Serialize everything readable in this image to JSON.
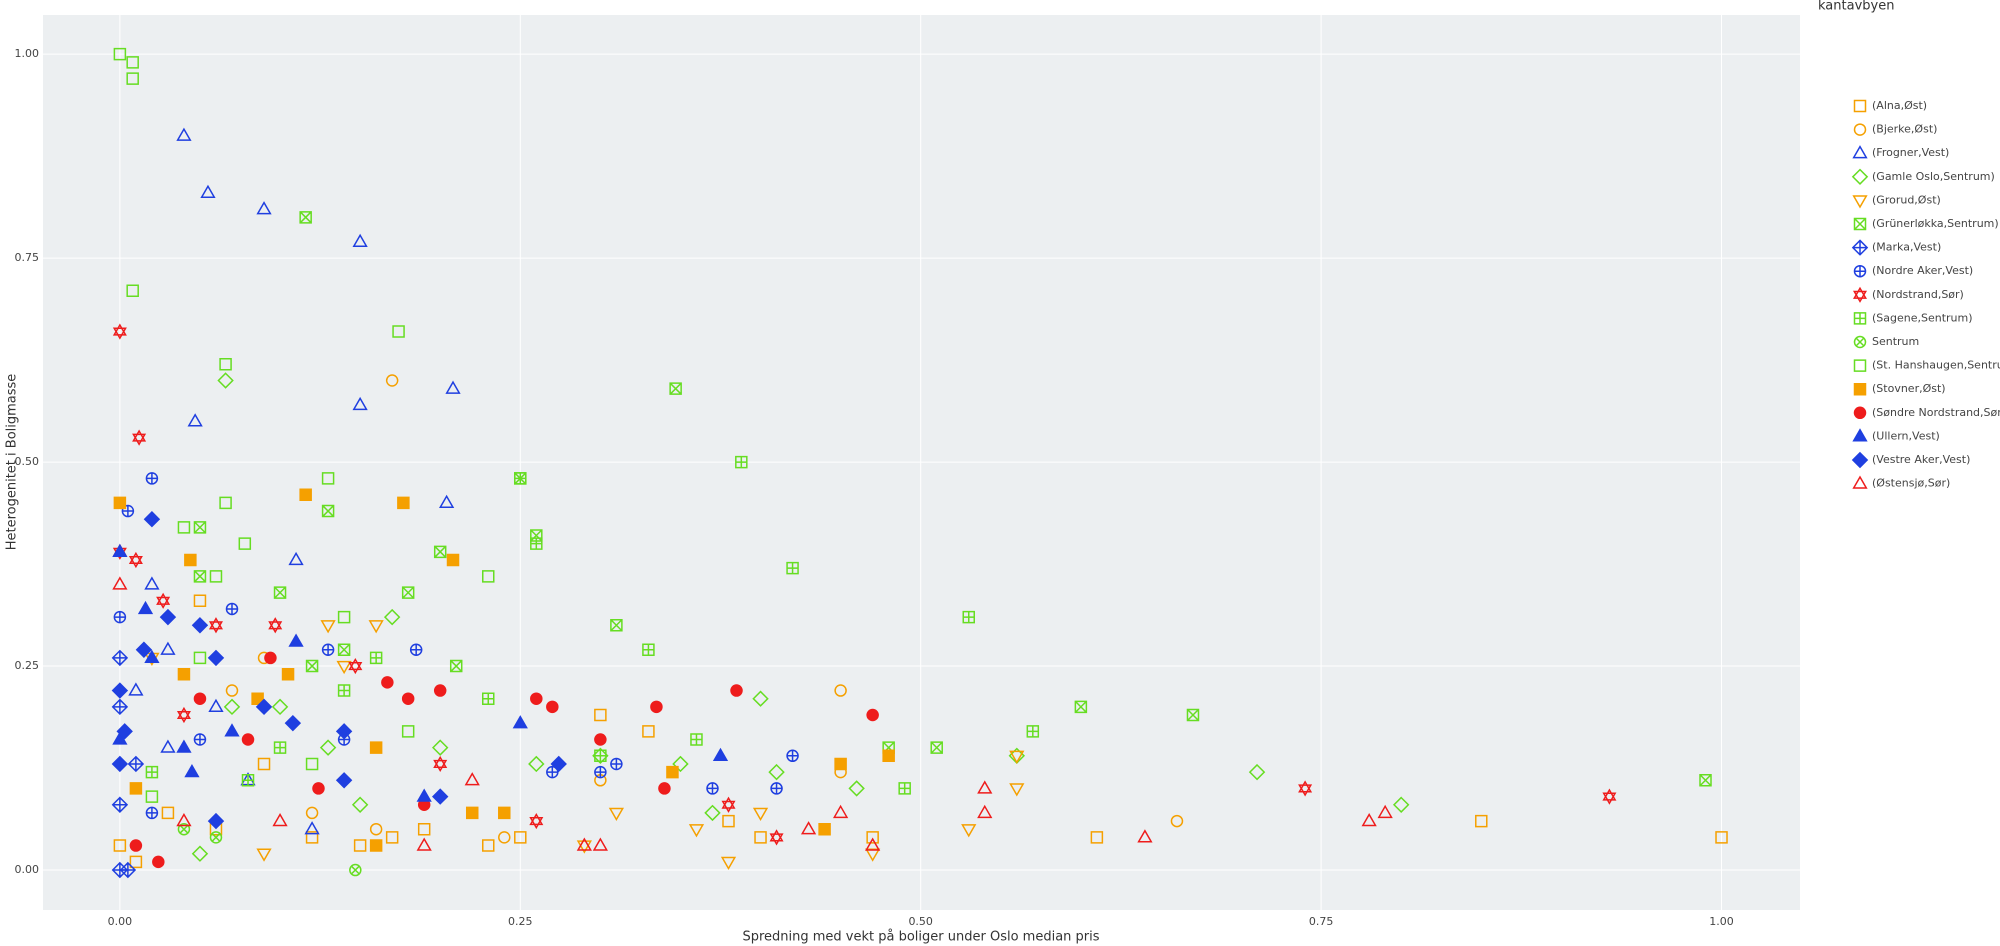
{
  "chart_data": {
    "type": "scatter",
    "xlabel": "Spredning med vekt på boliger under Oslo median pris",
    "ylabel": "Heterogenitet i Boligmasse",
    "legend_title": "kantavbyen",
    "legend": "right",
    "grid": true,
    "xlim": [
      -0.048,
      1.049
    ],
    "ylim": [
      -0.049,
      1.048
    ],
    "xticks": [
      {
        "value": 0,
        "label": "0.00"
      },
      {
        "value": 0.25,
        "label": "0.25"
      },
      {
        "value": 0.5,
        "label": "0.50"
      },
      {
        "value": 0.75,
        "label": "0.75"
      },
      {
        "value": 1,
        "label": "1.00"
      }
    ],
    "yticks": [
      {
        "value": 0,
        "label": "0.00"
      },
      {
        "value": 0.25,
        "label": "0.25"
      },
      {
        "value": 0.5,
        "label": "0.50"
      },
      {
        "value": 0.75,
        "label": "0.75"
      },
      {
        "value": 1,
        "label": "1.00"
      }
    ],
    "series": [
      {
        "name": "(Alna,Øst)",
        "color": "#f5a000",
        "symbol": "square-open",
        "x": [
          0.0,
          0.01,
          0.03,
          0.05,
          0.06,
          0.09,
          0.12,
          0.15,
          0.17,
          0.19,
          0.23,
          0.25,
          0.3,
          0.33,
          0.38,
          0.4,
          0.47,
          0.61,
          0.85,
          1.0
        ],
        "y": [
          0.03,
          0.01,
          0.07,
          0.33,
          0.05,
          0.13,
          0.04,
          0.03,
          0.04,
          0.05,
          0.03,
          0.04,
          0.19,
          0.17,
          0.06,
          0.04,
          0.04,
          0.04,
          0.06,
          0.04
        ]
      },
      {
        "name": "(Bjerke,Øst)",
        "color": "#f5a000",
        "symbol": "circle-open",
        "x": [
          0.09,
          0.17,
          0.12,
          0.16,
          0.24,
          0.3,
          0.45,
          0.45,
          0.66,
          0.07
        ],
        "y": [
          0.26,
          0.6,
          0.07,
          0.05,
          0.04,
          0.11,
          0.22,
          0.12,
          0.06,
          0.22
        ]
      },
      {
        "name": "(Frogner,Vest)",
        "color": "#1f3fe0",
        "symbol": "triangle-up-open",
        "x": [
          0.04,
          0.055,
          0.09,
          0.15,
          0.047,
          0.15,
          0.208,
          0.204,
          0.11,
          0.02,
          0.03,
          0.06,
          0.08,
          0.12,
          0.03,
          0.01
        ],
        "y": [
          0.9,
          0.83,
          0.81,
          0.77,
          0.55,
          0.57,
          0.59,
          0.45,
          0.38,
          0.35,
          0.27,
          0.2,
          0.11,
          0.05,
          0.15,
          0.22
        ]
      },
      {
        "name": "(Gamle Oslo,Sentrum)",
        "color": "#66dd22",
        "symbol": "diamond-open",
        "x": [
          0.066,
          0.17,
          0.1,
          0.07,
          0.13,
          0.2,
          0.26,
          0.3,
          0.35,
          0.4,
          0.41,
          0.37,
          0.46,
          0.56,
          0.71,
          0.8,
          0.05,
          0.15
        ],
        "y": [
          0.6,
          0.31,
          0.2,
          0.2,
          0.15,
          0.15,
          0.13,
          0.14,
          0.13,
          0.21,
          0.12,
          0.07,
          0.1,
          0.14,
          0.12,
          0.08,
          0.02,
          0.08
        ]
      },
      {
        "name": "(Grorud,Øst)",
        "color": "#f5a000",
        "symbol": "triangle-down-open",
        "x": [
          0.13,
          0.16,
          0.09,
          0.29,
          0.31,
          0.36,
          0.38,
          0.4,
          0.47,
          0.53,
          0.56,
          0.56,
          0.14,
          0.02
        ],
        "y": [
          0.3,
          0.3,
          0.02,
          0.03,
          0.07,
          0.05,
          0.01,
          0.07,
          0.02,
          0.05,
          0.1,
          0.14,
          0.25,
          0.26
        ]
      },
      {
        "name": "(Grünerløkka,Sentrum)",
        "color": "#66dd22",
        "symbol": "square-x-open",
        "x": [
          0.116,
          0.347,
          0.25,
          0.13,
          0.2,
          0.26,
          0.31,
          0.18,
          0.1,
          0.05,
          0.05,
          0.21,
          0.6,
          0.67,
          0.51,
          0.99,
          0.48,
          0.12,
          0.14
        ],
        "y": [
          0.8,
          0.59,
          0.48,
          0.44,
          0.39,
          0.41,
          0.3,
          0.34,
          0.34,
          0.36,
          0.42,
          0.25,
          0.2,
          0.19,
          0.15,
          0.11,
          0.15,
          0.25,
          0.27
        ]
      },
      {
        "name": "(Marka,Vest)",
        "color": "#1f3fe0",
        "symbol": "diamond-cross-open",
        "x": [
          0.0,
          0.005,
          0.0,
          0.0,
          0.01,
          0.0
        ],
        "y": [
          0.0,
          0.0,
          0.08,
          0.2,
          0.13,
          0.26
        ]
      },
      {
        "name": "(Nordre Aker,Vest)",
        "color": "#1f3fe0",
        "symbol": "circle-cross-open",
        "x": [
          0.02,
          0.005,
          0.0,
          0.07,
          0.13,
          0.185,
          0.3,
          0.31,
          0.37,
          0.42,
          0.41,
          0.14,
          0.02,
          0.27,
          0.05
        ],
        "y": [
          0.48,
          0.44,
          0.31,
          0.32,
          0.27,
          0.27,
          0.12,
          0.13,
          0.1,
          0.14,
          0.1,
          0.16,
          0.07,
          0.12,
          0.16
        ]
      },
      {
        "name": "(Nordstrand,Sør)",
        "color": "#ee1c1c",
        "symbol": "star-hexagram-open",
        "x": [
          0.0,
          0.012,
          0.0,
          0.01,
          0.027,
          0.097,
          0.147,
          0.2,
          0.26,
          0.38,
          0.41,
          0.74,
          0.93,
          0.04,
          0.06
        ],
        "y": [
          0.66,
          0.53,
          0.39,
          0.38,
          0.33,
          0.3,
          0.25,
          0.13,
          0.06,
          0.08,
          0.04,
          0.1,
          0.09,
          0.19,
          0.3
        ]
      },
      {
        "name": "(Sagene,Sentrum)",
        "color": "#66dd22",
        "symbol": "square-cross-open",
        "x": [
          0.388,
          0.42,
          0.25,
          0.26,
          0.53,
          0.33,
          0.57,
          0.49,
          0.36,
          0.3,
          0.16,
          0.14,
          0.1,
          0.08,
          0.23,
          0.02
        ],
        "y": [
          0.5,
          0.37,
          0.48,
          0.4,
          0.31,
          0.27,
          0.17,
          0.1,
          0.16,
          0.14,
          0.26,
          0.22,
          0.15,
          0.11,
          0.21,
          0.12
        ]
      },
      {
        "name": "Sentrum",
        "color": "#66dd22",
        "symbol": "circle-x-open",
        "x": [
          0.147,
          0.04,
          0.06
        ],
        "y": [
          0.0,
          0.05,
          0.04
        ]
      },
      {
        "name": "(St. Hanshaugen,Sentrum)",
        "color": "#66dd22",
        "symbol": "square-open",
        "x": [
          0.0,
          0.008,
          0.008,
          0.008,
          0.066,
          0.174,
          0.13,
          0.066,
          0.078,
          0.04,
          0.06,
          0.14,
          0.23,
          0.12,
          0.02,
          0.18,
          0.05
        ],
        "y": [
          1.0,
          0.99,
          0.97,
          0.71,
          0.62,
          0.66,
          0.48,
          0.45,
          0.4,
          0.42,
          0.36,
          0.31,
          0.36,
          0.13,
          0.09,
          0.17,
          0.26
        ]
      },
      {
        "name": "(Stovner,Øst)",
        "color": "#f5a000",
        "symbol": "square",
        "x": [
          0.0,
          0.116,
          0.177,
          0.044,
          0.208,
          0.04,
          0.105,
          0.086,
          0.16,
          0.22,
          0.24,
          0.345,
          0.45,
          0.44,
          0.48,
          0.16,
          0.01
        ],
        "y": [
          0.45,
          0.46,
          0.45,
          0.38,
          0.38,
          0.24,
          0.24,
          0.21,
          0.15,
          0.07,
          0.07,
          0.12,
          0.13,
          0.05,
          0.14,
          0.03,
          0.1
        ]
      },
      {
        "name": "(Søndre Nordstrand,Sør)",
        "color": "#ee1c1c",
        "symbol": "circle",
        "x": [
          0.094,
          0.18,
          0.2,
          0.26,
          0.27,
          0.335,
          0.385,
          0.3,
          0.47,
          0.34,
          0.19,
          0.08,
          0.05,
          0.01,
          0.024,
          0.124,
          0.167
        ],
        "y": [
          0.26,
          0.21,
          0.22,
          0.21,
          0.2,
          0.2,
          0.22,
          0.16,
          0.19,
          0.1,
          0.08,
          0.16,
          0.21,
          0.03,
          0.01,
          0.1,
          0.23
        ]
      },
      {
        "name": "(Ullern,Vest)",
        "color": "#1f3fe0",
        "symbol": "triangle-up",
        "x": [
          0.0,
          0.016,
          0.02,
          0.11,
          0.19,
          0.25,
          0.375,
          0.07,
          0.04,
          0.045,
          0.0
        ],
        "y": [
          0.39,
          0.32,
          0.26,
          0.28,
          0.09,
          0.18,
          0.14,
          0.17,
          0.15,
          0.12,
          0.16
        ]
      },
      {
        "name": "(Vestre Aker,Vest)",
        "color": "#1f3fe0",
        "symbol": "diamond",
        "x": [
          0.02,
          0.05,
          0.03,
          0.015,
          0.0,
          0.003,
          0.06,
          0.09,
          0.14,
          0.108,
          0.14,
          0.274,
          0.2,
          0.06,
          0.0
        ],
        "y": [
          0.43,
          0.3,
          0.31,
          0.27,
          0.22,
          0.17,
          0.26,
          0.2,
          0.11,
          0.18,
          0.17,
          0.13,
          0.09,
          0.06,
          0.13
        ]
      },
      {
        "name": "(Østensjø,Sør)",
        "color": "#ee1c1c",
        "symbol": "triangle-up-open",
        "x": [
          0.0,
          0.04,
          0.19,
          0.29,
          0.3,
          0.45,
          0.47,
          0.43,
          0.54,
          0.54,
          0.64,
          0.78,
          0.79,
          0.22,
          0.1
        ],
        "y": [
          0.35,
          0.06,
          0.03,
          0.03,
          0.03,
          0.07,
          0.03,
          0.05,
          0.07,
          0.1,
          0.04,
          0.06,
          0.07,
          0.11,
          0.06
        ]
      }
    ]
  }
}
